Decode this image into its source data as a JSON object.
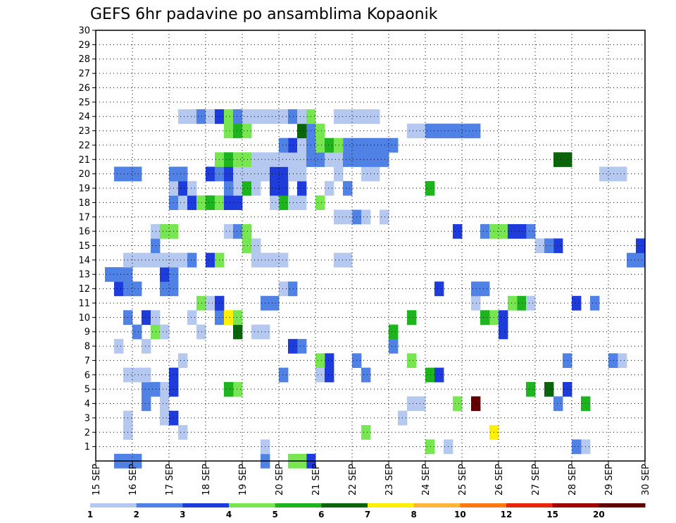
{
  "chart_data": {
    "type": "heatmap",
    "title": "GEFS 6hr padavine po ansamblima Kopaonik",
    "xlabel": "",
    "ylabel": "",
    "x_ticks": [
      "15 SEP",
      "16 SEP",
      "17 SEP",
      "18 SEP",
      "19 SEP",
      "20 SEP",
      "21 SEP",
      "22 SEP",
      "23 SEP",
      "24 SEP",
      "25 SEP",
      "26 SEP",
      "27 SEP",
      "28 SEP",
      "29 SEP",
      "30 SEP"
    ],
    "y_ticks": [
      "1",
      "2",
      "3",
      "4",
      "5",
      "6",
      "7",
      "8",
      "9",
      "10",
      "11",
      "12",
      "13",
      "14",
      "15",
      "16",
      "17",
      "18",
      "19",
      "20",
      "21",
      "22",
      "23",
      "24",
      "25",
      "26",
      "27",
      "28",
      "29",
      "30"
    ],
    "x_range_days": [
      0,
      15
    ],
    "y_range": [
      0,
      30
    ],
    "time_step_hours": 6,
    "grid": true,
    "colorbar": {
      "levels": [
        "1",
        "2",
        "3",
        "4",
        "5",
        "6",
        "7",
        "8",
        "10",
        "12",
        "15",
        "20"
      ],
      "colors": [
        "#b4c8f0",
        "#5082e6",
        "#1e3cdc",
        "#78e650",
        "#1eb41e",
        "#0a640a",
        "#fff000",
        "#ffb43c",
        "#ff7814",
        "#e6280a",
        "#a00000",
        "#640000"
      ]
    },
    "cells": [
      [
        0,
        2,
        1
      ],
      [
        0,
        3,
        1
      ],
      [
        0,
        4,
        1
      ],
      [
        0,
        18,
        1
      ],
      [
        0,
        23,
        2
      ],
      [
        0,
        21,
        3
      ],
      [
        0,
        22,
        3
      ],
      [
        1,
        18,
        0
      ],
      [
        1,
        36,
        3
      ],
      [
        1,
        53,
        0
      ],
      [
        1,
        38,
        0
      ],
      [
        1,
        52,
        1
      ],
      [
        2,
        3,
        0
      ],
      [
        2,
        9,
        0
      ],
      [
        2,
        29,
        3
      ],
      [
        2,
        43,
        6
      ],
      [
        3,
        3,
        0
      ],
      [
        3,
        7,
        0
      ],
      [
        3,
        8,
        2
      ],
      [
        3,
        33,
        0
      ],
      [
        4,
        5,
        1
      ],
      [
        4,
        7,
        0
      ],
      [
        4,
        34,
        0
      ],
      [
        4,
        35,
        0
      ],
      [
        4,
        53,
        4
      ],
      [
        4,
        50,
        1
      ],
      [
        4,
        39,
        3
      ],
      [
        4,
        41,
        11
      ],
      [
        5,
        5,
        1
      ],
      [
        5,
        7,
        0
      ],
      [
        5,
        6,
        1
      ],
      [
        5,
        8,
        2
      ],
      [
        5,
        15,
        3
      ],
      [
        5,
        14,
        4
      ],
      [
        5,
        47,
        4
      ],
      [
        5,
        49,
        5
      ],
      [
        5,
        51,
        2
      ],
      [
        6,
        3,
        0
      ],
      [
        6,
        4,
        0
      ],
      [
        6,
        5,
        0
      ],
      [
        6,
        8,
        2
      ],
      [
        6,
        20,
        1
      ],
      [
        6,
        24,
        0
      ],
      [
        6,
        25,
        2
      ],
      [
        6,
        29,
        1
      ],
      [
        6,
        36,
        4
      ],
      [
        6,
        37,
        2
      ],
      [
        7,
        9,
        0
      ],
      [
        7,
        34,
        3
      ],
      [
        7,
        28,
        1
      ],
      [
        7,
        25,
        2
      ],
      [
        7,
        24,
        3
      ],
      [
        7,
        57,
        0
      ],
      [
        7,
        56,
        1
      ],
      [
        7,
        51,
        1
      ],
      [
        8,
        2,
        0
      ],
      [
        8,
        5,
        0
      ],
      [
        8,
        22,
        1
      ],
      [
        8,
        21,
        2
      ],
      [
        8,
        32,
        1
      ],
      [
        9,
        4,
        1
      ],
      [
        9,
        6,
        3
      ],
      [
        9,
        7,
        0
      ],
      [
        9,
        11,
        0
      ],
      [
        9,
        15,
        5
      ],
      [
        9,
        17,
        0
      ],
      [
        9,
        18,
        0
      ],
      [
        9,
        32,
        4
      ],
      [
        9,
        44,
        2
      ],
      [
        10,
        3,
        1
      ],
      [
        10,
        5,
        2
      ],
      [
        10,
        6,
        0
      ],
      [
        10,
        10,
        0
      ],
      [
        10,
        13,
        1
      ],
      [
        10,
        14,
        6
      ],
      [
        10,
        34,
        4
      ],
      [
        10,
        43,
        3
      ],
      [
        10,
        42,
        4
      ],
      [
        10,
        44,
        2
      ],
      [
        10,
        15,
        3
      ],
      [
        11,
        18,
        1
      ],
      [
        11,
        19,
        1
      ],
      [
        11,
        12,
        0
      ],
      [
        11,
        13,
        2
      ],
      [
        11,
        11,
        3
      ],
      [
        11,
        41,
        0
      ],
      [
        11,
        46,
        4
      ],
      [
        11,
        45,
        3
      ],
      [
        11,
        47,
        0
      ],
      [
        11,
        52,
        2
      ],
      [
        11,
        54,
        1
      ],
      [
        12,
        2,
        2
      ],
      [
        12,
        3,
        1
      ],
      [
        12,
        4,
        1
      ],
      [
        12,
        7,
        1
      ],
      [
        12,
        8,
        1
      ],
      [
        12,
        20,
        0
      ],
      [
        12,
        21,
        1
      ],
      [
        12,
        37,
        2
      ],
      [
        12,
        41,
        1
      ],
      [
        12,
        42,
        1
      ],
      [
        13,
        1,
        1
      ],
      [
        13,
        2,
        1
      ],
      [
        13,
        3,
        1
      ],
      [
        13,
        7,
        2
      ],
      [
        13,
        8,
        1
      ],
      [
        14,
        3,
        0
      ],
      [
        14,
        4,
        0
      ],
      [
        14,
        5,
        0
      ],
      [
        14,
        6,
        0
      ],
      [
        14,
        7,
        0
      ],
      [
        14,
        8,
        0
      ],
      [
        14,
        9,
        0
      ],
      [
        14,
        10,
        1
      ],
      [
        14,
        12,
        2
      ],
      [
        14,
        13,
        3
      ],
      [
        14,
        17,
        0
      ],
      [
        14,
        18,
        0
      ],
      [
        14,
        19,
        0
      ],
      [
        14,
        20,
        0
      ],
      [
        14,
        27,
        0
      ],
      [
        14,
        26,
        0
      ],
      [
        14,
        58,
        1
      ],
      [
        14,
        59,
        1
      ],
      [
        15,
        6,
        1
      ],
      [
        15,
        16,
        3
      ],
      [
        15,
        17,
        0
      ],
      [
        15,
        48,
        0
      ],
      [
        15,
        50,
        2
      ],
      [
        15,
        59,
        2
      ],
      [
        15,
        49,
        1
      ],
      [
        16,
        6,
        0
      ],
      [
        16,
        7,
        3
      ],
      [
        16,
        8,
        3
      ],
      [
        16,
        39,
        2
      ],
      [
        16,
        42,
        1
      ],
      [
        16,
        43,
        3
      ],
      [
        16,
        44,
        3
      ],
      [
        16,
        47,
        1
      ],
      [
        16,
        46,
        2
      ],
      [
        16,
        45,
        2
      ],
      [
        16,
        14,
        0
      ],
      [
        16,
        15,
        1
      ],
      [
        16,
        16,
        3
      ],
      [
        17,
        28,
        1
      ],
      [
        17,
        29,
        0
      ],
      [
        17,
        31,
        0
      ],
      [
        17,
        27,
        0
      ],
      [
        17,
        26,
        0
      ],
      [
        18,
        22,
        0
      ],
      [
        18,
        20,
        4
      ],
      [
        18,
        21,
        0
      ],
      [
        18,
        19,
        0
      ],
      [
        18,
        24,
        3
      ],
      [
        18,
        8,
        1
      ],
      [
        18,
        9,
        0
      ],
      [
        18,
        10,
        2
      ],
      [
        18,
        11,
        3
      ],
      [
        18,
        12,
        4
      ],
      [
        18,
        13,
        3
      ],
      [
        18,
        14,
        2
      ],
      [
        18,
        15,
        2
      ],
      [
        19,
        8,
        0
      ],
      [
        19,
        9,
        2
      ],
      [
        19,
        10,
        0
      ],
      [
        19,
        15,
        0
      ],
      [
        19,
        16,
        4
      ],
      [
        19,
        17,
        0
      ],
      [
        19,
        14,
        1
      ],
      [
        19,
        19,
        2
      ],
      [
        19,
        20,
        2
      ],
      [
        19,
        22,
        2
      ],
      [
        19,
        25,
        0
      ],
      [
        19,
        27,
        1
      ],
      [
        19,
        36,
        4
      ],
      [
        20,
        2,
        1
      ],
      [
        20,
        3,
        1
      ],
      [
        20,
        4,
        1
      ],
      [
        20,
        8,
        1
      ],
      [
        20,
        9,
        1
      ],
      [
        20,
        12,
        2
      ],
      [
        20,
        13,
        1
      ],
      [
        20,
        14,
        2
      ],
      [
        20,
        15,
        0
      ],
      [
        20,
        16,
        0
      ],
      [
        20,
        17,
        0
      ],
      [
        20,
        18,
        0
      ],
      [
        20,
        19,
        2
      ],
      [
        20,
        20,
        2
      ],
      [
        20,
        21,
        0
      ],
      [
        20,
        22,
        0
      ],
      [
        20,
        26,
        0
      ],
      [
        20,
        29,
        0
      ],
      [
        20,
        30,
        0
      ],
      [
        20,
        55,
        0
      ],
      [
        20,
        56,
        0
      ],
      [
        20,
        57,
        0
      ],
      [
        21,
        31,
        1
      ],
      [
        21,
        13,
        3
      ],
      [
        21,
        14,
        4
      ],
      [
        21,
        15,
        3
      ],
      [
        21,
        16,
        3
      ],
      [
        21,
        17,
        0
      ],
      [
        21,
        26,
        0
      ],
      [
        21,
        27,
        1
      ],
      [
        21,
        28,
        1
      ],
      [
        21,
        29,
        1
      ],
      [
        21,
        30,
        1
      ],
      [
        21,
        22,
        0
      ],
      [
        21,
        23,
        1
      ],
      [
        21,
        19,
        0
      ],
      [
        21,
        20,
        0
      ],
      [
        21,
        21,
        0
      ],
      [
        21,
        18,
        0
      ],
      [
        21,
        24,
        1
      ],
      [
        21,
        25,
        0
      ],
      [
        21,
        51,
        5
      ],
      [
        21,
        50,
        5
      ],
      [
        22,
        21,
        2
      ],
      [
        22,
        20,
        1
      ],
      [
        22,
        31,
        1
      ],
      [
        22,
        28,
        1
      ],
      [
        22,
        29,
        1
      ],
      [
        22,
        30,
        1
      ],
      [
        22,
        32,
        1
      ],
      [
        22,
        27,
        1
      ],
      [
        22,
        24,
        3
      ],
      [
        22,
        25,
        4
      ],
      [
        22,
        26,
        3
      ],
      [
        22,
        22,
        0
      ],
      [
        22,
        23,
        1
      ],
      [
        23,
        23,
        1
      ],
      [
        23,
        24,
        3
      ],
      [
        23,
        22,
        5
      ],
      [
        23,
        39,
        1
      ],
      [
        23,
        35,
        0
      ],
      [
        23,
        36,
        1
      ],
      [
        23,
        37,
        1
      ],
      [
        23,
        38,
        1
      ],
      [
        23,
        14,
        3
      ],
      [
        23,
        15,
        4
      ],
      [
        23,
        16,
        3
      ],
      [
        23,
        40,
        1
      ],
      [
        23,
        34,
        0
      ],
      [
        23,
        41,
        1
      ],
      [
        24,
        9,
        0
      ],
      [
        24,
        10,
        0
      ],
      [
        24,
        11,
        1
      ],
      [
        24,
        12,
        0
      ],
      [
        24,
        13,
        2
      ],
      [
        24,
        14,
        3
      ],
      [
        24,
        15,
        1
      ],
      [
        24,
        16,
        0
      ],
      [
        24,
        17,
        0
      ],
      [
        24,
        18,
        0
      ],
      [
        24,
        19,
        0
      ],
      [
        24,
        20,
        0
      ],
      [
        24,
        21,
        1
      ],
      [
        24,
        22,
        0
      ],
      [
        24,
        23,
        3
      ],
      [
        24,
        26,
        0
      ],
      [
        24,
        27,
        0
      ],
      [
        24,
        28,
        0
      ],
      [
        24,
        29,
        0
      ],
      [
        24,
        30,
        0
      ]
    ]
  }
}
